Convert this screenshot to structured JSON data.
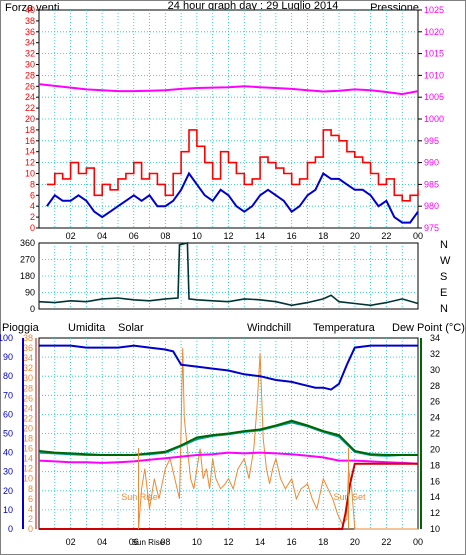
{
  "colors": {
    "wind_gust": "#ff0000",
    "wind_avg": "#0000cc",
    "pressure": "#ff00ff",
    "direction": "#003333",
    "rain": "#cc0000",
    "humidity": "#0000cc",
    "solar": "#ee8833",
    "windchill": "#009999",
    "temperature": "#006600",
    "dewpoint": "#ff00ff",
    "grid": "#00cccc",
    "frame": "#000000"
  },
  "chart_data": [
    {
      "type": "line",
      "title": "24 hour graph day : 29 Luglio 2014",
      "left_axis_title": "Forza venti",
      "right_axis_title": "Pressione",
      "x_ticks": [
        "02",
        "04",
        "06",
        "08",
        "10",
        "12",
        "14",
        "16",
        "18",
        "20",
        "22",
        "00"
      ],
      "y_left_ticks": [
        0,
        2,
        4,
        6,
        8,
        10,
        12,
        14,
        16,
        18,
        20,
        22,
        24,
        26,
        28,
        30,
        32,
        34,
        36,
        38,
        40
      ],
      "y_left_lim": [
        0,
        40
      ],
      "y_right_ticks": [
        975,
        980,
        985,
        990,
        995,
        1000,
        1005,
        1010,
        1015,
        1020,
        1025
      ],
      "y_right_lim": [
        975,
        1025
      ],
      "x_lim": [
        0,
        24
      ],
      "series": [
        {
          "key": "gust",
          "axis": "left",
          "x": [
            0.5,
            1,
            1.5,
            2,
            2.5,
            3,
            3.5,
            4,
            4.5,
            5,
            5.5,
            6,
            6.5,
            7,
            7.5,
            8,
            8.5,
            9,
            9.5,
            10,
            10.5,
            11,
            11.5,
            12,
            12.5,
            13,
            13.5,
            14,
            14.5,
            15,
            15.5,
            16,
            16.5,
            17,
            17.5,
            18,
            18.5,
            19,
            19.5,
            20,
            20.5,
            21,
            21.5,
            22,
            22.5,
            23,
            23.5,
            24
          ],
          "values": [
            8,
            10,
            9,
            12,
            10,
            11,
            6,
            8,
            7,
            9,
            10,
            12,
            9,
            10,
            8,
            6,
            10,
            14,
            18,
            15,
            12,
            9,
            14,
            12,
            10,
            8,
            9,
            13,
            12,
            11,
            10,
            8,
            9,
            12,
            13,
            18,
            17,
            16,
            14,
            13,
            12,
            10,
            8,
            9,
            6,
            5,
            6,
            7
          ]
        },
        {
          "key": "avg",
          "axis": "left",
          "x": [
            0.5,
            1,
            1.5,
            2,
            2.5,
            3,
            3.5,
            4,
            4.5,
            5,
            5.5,
            6,
            6.5,
            7,
            7.5,
            8,
            8.5,
            9,
            9.5,
            10,
            10.5,
            11,
            11.5,
            12,
            12.5,
            13,
            13.5,
            14,
            14.5,
            15,
            15.5,
            16,
            16.5,
            17,
            17.5,
            18,
            18.5,
            19,
            19.5,
            20,
            20.5,
            21,
            21.5,
            22,
            22.5,
            23,
            23.5,
            24
          ],
          "values": [
            4,
            6,
            5,
            5,
            6,
            5,
            3,
            2,
            3,
            4,
            5,
            6,
            5,
            6,
            4,
            4,
            5,
            7,
            10,
            8,
            6,
            5,
            7,
            6,
            4,
            3,
            4,
            6,
            7,
            6,
            5,
            3,
            4,
            6,
            7,
            10,
            9,
            9,
            8,
            7,
            7,
            6,
            4,
            5,
            2,
            1,
            1,
            3
          ]
        },
        {
          "key": "pressure",
          "axis": "right",
          "x": [
            0,
            1,
            2,
            3,
            4,
            5,
            6,
            7,
            8,
            9,
            10,
            11,
            12,
            13,
            14,
            15,
            16,
            17,
            18,
            19,
            20,
            21,
            22,
            23,
            24
          ],
          "values": [
            1008,
            1007.6,
            1007.2,
            1006.8,
            1006.6,
            1006.4,
            1006.4,
            1006.5,
            1006.6,
            1006.9,
            1007.1,
            1007.2,
            1007.3,
            1007.5,
            1007.3,
            1007.1,
            1006.9,
            1006.6,
            1006.3,
            1006.5,
            1006.8,
            1006.6,
            1006.2,
            1005.7,
            1006.4
          ]
        }
      ]
    },
    {
      "type": "line",
      "y_ticks": [
        0,
        90,
        180,
        270,
        360
      ],
      "y_lim": [
        0,
        360
      ],
      "x_lim": [
        0,
        24
      ],
      "compass_labels": [
        "N",
        "W",
        "S",
        "E",
        "N"
      ],
      "series": [
        {
          "key": "direction",
          "x": [
            0,
            1,
            2,
            3,
            4,
            5,
            6,
            7,
            8,
            8.8,
            8.9,
            9.4,
            9.5,
            10,
            11,
            12,
            13,
            14,
            15,
            16,
            17,
            18,
            18.5,
            19,
            20,
            21,
            22,
            23,
            24
          ],
          "values": [
            40,
            35,
            45,
            40,
            55,
            60,
            50,
            45,
            55,
            60,
            350,
            360,
            55,
            50,
            45,
            40,
            55,
            50,
            40,
            20,
            35,
            55,
            75,
            40,
            30,
            20,
            35,
            55,
            30
          ]
        }
      ]
    },
    {
      "type": "line",
      "labels": {
        "rain": "Pioggia",
        "humidity": "Umidita",
        "solar": "Solar",
        "windchill": "Windchill",
        "temperature": "Temperatura",
        "dewpoint": "Dew Point (°C)"
      },
      "x_ticks": [
        "02",
        "04",
        "06",
        "Sun Rise",
        "08",
        "10",
        "12",
        "14",
        "16",
        "18",
        "20",
        "22",
        "00"
      ],
      "y_left_outer_ticks": [
        0,
        10,
        20,
        30,
        40,
        50,
        60,
        70,
        80,
        90,
        100
      ],
      "y_left_outer_lim": [
        0,
        100
      ],
      "y_left_inner_ticks": [
        0,
        2,
        4,
        6,
        8,
        10,
        12,
        14,
        16,
        18,
        20,
        22,
        24,
        26,
        28,
        30,
        32,
        34,
        36,
        38
      ],
      "y_left_inner_lim": [
        0,
        38
      ],
      "y_right_ticks": [
        10,
        12,
        14,
        16,
        18,
        20,
        22,
        24,
        26,
        28,
        30,
        32,
        34
      ],
      "y_right_lim": [
        10,
        34
      ],
      "x_lim": [
        0,
        24
      ],
      "annotations": [
        "Sun Rise",
        "Sun Set"
      ],
      "series": [
        {
          "key": "humidity",
          "axis": "outer",
          "x": [
            0,
            1,
            2,
            3,
            4,
            5,
            6,
            7,
            8,
            8.5,
            9,
            10,
            11,
            12,
            13,
            14,
            15,
            16,
            17,
            17.5,
            18,
            18.5,
            19,
            19.5,
            20,
            21,
            22,
            23,
            24
          ],
          "values": [
            96,
            96,
            96,
            95,
            95,
            95,
            96,
            95,
            94,
            93,
            86,
            85,
            84,
            83,
            81,
            80,
            78,
            77,
            75,
            74,
            74,
            73,
            76,
            86,
            95,
            96,
            96,
            96,
            96
          ]
        },
        {
          "key": "temperature",
          "axis": "right",
          "x": [
            0,
            1,
            2,
            3,
            4,
            5,
            6,
            7,
            8,
            9,
            10,
            11,
            12,
            13,
            14,
            15,
            16,
            17,
            18,
            19,
            20,
            21,
            22,
            23,
            24
          ],
          "values": [
            19.8,
            19.6,
            19.5,
            19.4,
            19.3,
            19.3,
            19.3,
            19.5,
            19.7,
            20.5,
            21.5,
            21.8,
            22,
            22.3,
            22.5,
            23,
            23.6,
            23,
            22.3,
            21.8,
            19.8,
            19.4,
            19.3,
            19.3,
            19.3
          ]
        },
        {
          "key": "windchill",
          "axis": "right",
          "x": [
            0,
            1,
            2,
            3,
            4,
            5,
            6,
            7,
            8,
            9,
            10,
            11,
            12,
            13,
            14,
            15,
            16,
            17,
            18,
            19,
            20,
            21,
            22,
            23,
            24
          ],
          "values": [
            19.6,
            19.5,
            19.4,
            19.3,
            19.3,
            19.3,
            19.3,
            19.4,
            19.6,
            20.4,
            21.3,
            21.7,
            21.9,
            22.2,
            22.4,
            22.9,
            23.4,
            22.9,
            22.2,
            21.6,
            19.7,
            19.3,
            19.2,
            19.3,
            19.3
          ]
        },
        {
          "key": "dewpoint",
          "axis": "right",
          "x": [
            0,
            1,
            2,
            3,
            4,
            5,
            6,
            7,
            8,
            9,
            10,
            11,
            12,
            13,
            14,
            15,
            16,
            17,
            18,
            19,
            20,
            21,
            22,
            23,
            24
          ],
          "values": [
            18.6,
            18.5,
            18.4,
            18.4,
            18.3,
            18.4,
            18.5,
            18.7,
            18.9,
            19.1,
            19.3,
            19.4,
            19.6,
            19.5,
            19.6,
            19.5,
            19.4,
            19.2,
            19.0,
            18.6,
            18.6,
            18.5,
            18.4,
            18.3,
            18.2
          ]
        },
        {
          "key": "solar",
          "axis": "inner",
          "x": [
            0,
            6.3,
            6.5,
            6.7,
            7,
            7.3,
            7.6,
            8,
            8.3,
            8.6,
            8.9,
            9,
            9.1,
            9.2,
            9.4,
            9.6,
            9.8,
            10,
            10.2,
            10.4,
            10.6,
            10.8,
            11,
            11.2,
            11.5,
            11.8,
            12,
            12.3,
            12.6,
            13,
            13.3,
            13.6,
            13.8,
            14,
            14.2,
            14.4,
            14.6,
            14.8,
            15,
            15.3,
            15.6,
            16,
            16.3,
            16.6,
            17,
            17.3,
            17.6,
            18,
            18.3,
            18.6,
            18.9,
            19.2,
            19.5,
            19.6,
            19.8,
            20,
            24
          ],
          "values": [
            0,
            0,
            8,
            12,
            4,
            10,
            6,
            12,
            14,
            10,
            6,
            20,
            36,
            22,
            16,
            10,
            8,
            12,
            16,
            10,
            12,
            8,
            14,
            10,
            8,
            9,
            10,
            8,
            12,
            14,
            10,
            16,
            24,
            35,
            18,
            12,
            9,
            12,
            14,
            10,
            8,
            10,
            6,
            8,
            9,
            6,
            4,
            10,
            8,
            6,
            3,
            1,
            2,
            12,
            8,
            0,
            0
          ]
        },
        {
          "key": "rain",
          "axis": "inner",
          "x": [
            0,
            19.2,
            19.4,
            19.7,
            20,
            24
          ],
          "values": [
            0,
            0,
            3,
            9,
            13,
            13
          ]
        }
      ]
    }
  ]
}
